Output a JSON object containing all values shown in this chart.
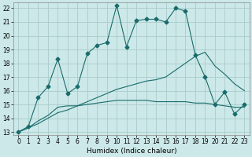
{
  "title": "",
  "xlabel": "Humidex (Indice chaleur)",
  "bg_color": "#cce8e8",
  "grid_color": "#aacccc",
  "line_color": "#1a6b6b",
  "line1_x": [
    0,
    1,
    2,
    3,
    4,
    5,
    6,
    7,
    8,
    9,
    10,
    11,
    12,
    13,
    14,
    15,
    16,
    17,
    18,
    19,
    20,
    21,
    22,
    23
  ],
  "line1_y": [
    13.0,
    13.4,
    15.5,
    16.3,
    18.3,
    15.8,
    16.3,
    18.7,
    19.3,
    19.5,
    22.2,
    19.2,
    21.1,
    21.2,
    21.2,
    21.0,
    22.0,
    21.8,
    18.6,
    17.0,
    15.0,
    15.9,
    14.3,
    15.0
  ],
  "line2_x": [
    0,
    1,
    2,
    3,
    4,
    5,
    6,
    7,
    8,
    9,
    10,
    11,
    12,
    13,
    14,
    15,
    16,
    17,
    18,
    19,
    20,
    21,
    22,
    23
  ],
  "line2_y": [
    13.0,
    13.3,
    13.8,
    14.2,
    14.8,
    14.9,
    14.9,
    15.0,
    15.1,
    15.2,
    15.3,
    15.3,
    15.3,
    15.3,
    15.2,
    15.2,
    15.2,
    15.2,
    15.1,
    15.1,
    15.0,
    14.9,
    14.8,
    14.8
  ],
  "line3_x": [
    0,
    1,
    2,
    3,
    4,
    5,
    6,
    7,
    8,
    9,
    10,
    11,
    12,
    13,
    14,
    15,
    16,
    17,
    18,
    19,
    20,
    21,
    22,
    23
  ],
  "line3_y": [
    13.0,
    13.3,
    13.6,
    14.0,
    14.4,
    14.6,
    14.9,
    15.2,
    15.5,
    15.8,
    16.1,
    16.3,
    16.5,
    16.7,
    16.8,
    17.0,
    17.5,
    18.0,
    18.5,
    18.8,
    17.8,
    17.2,
    16.5,
    16.0
  ],
  "ylim": [
    12.8,
    22.4
  ],
  "xlim": [
    -0.5,
    23.5
  ],
  "yticks": [
    13,
    14,
    15,
    16,
    17,
    18,
    19,
    20,
    21,
    22
  ],
  "xticks": [
    0,
    1,
    2,
    3,
    4,
    5,
    6,
    7,
    8,
    9,
    10,
    11,
    12,
    13,
    14,
    15,
    16,
    17,
    18,
    19,
    20,
    21,
    22,
    23
  ],
  "tick_fontsize": 5.5,
  "label_fontsize": 6.5
}
